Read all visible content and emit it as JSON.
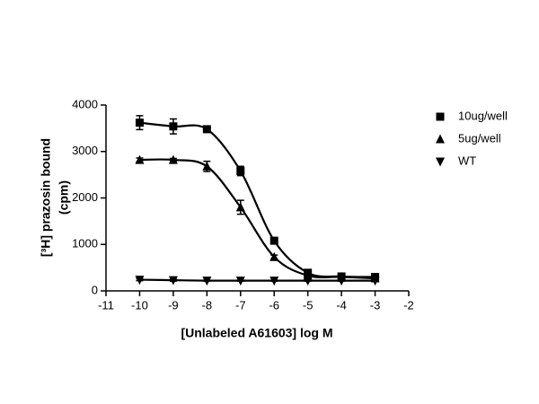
{
  "chart_data": {
    "type": "scatter",
    "x_label": "[Unlabeled A61603] log M",
    "y_label": [
      "[³H] prazosin bound",
      "(cpm)"
    ],
    "x": [
      -10,
      -9,
      -8,
      -7,
      -6,
      -5,
      -4,
      -3
    ],
    "series": [
      {
        "name": "10ug/well",
        "color": "#000000",
        "marker": "square",
        "values": [
          3620,
          3540,
          3480,
          2580,
          1080,
          390,
          310,
          300
        ],
        "errors": [
          150,
          160,
          40,
          100,
          40,
          40,
          30,
          30
        ]
      },
      {
        "name": "5ug/well",
        "color": "#000000",
        "marker": "triangle-up",
        "values": [
          2820,
          2820,
          2680,
          1800,
          730,
          330,
          300,
          270
        ],
        "errors": [
          40,
          30,
          110,
          150,
          40,
          30,
          20,
          20
        ]
      },
      {
        "name": "WT",
        "color": "#000000",
        "marker": "triangle-down",
        "values": [
          240,
          230,
          220,
          220,
          220,
          220,
          220,
          220
        ],
        "errors": [
          20,
          20,
          10,
          10,
          10,
          10,
          10,
          10
        ]
      }
    ],
    "xlim": [
      -11,
      -2
    ],
    "xticks": [
      -11,
      -10,
      -9,
      -8,
      -7,
      -6,
      -5,
      -4,
      -3,
      -2
    ],
    "ylim": [
      0,
      4000
    ],
    "yticks": [
      0,
      1000,
      2000,
      3000,
      4000
    ],
    "grid": false,
    "legend": "top-right"
  }
}
